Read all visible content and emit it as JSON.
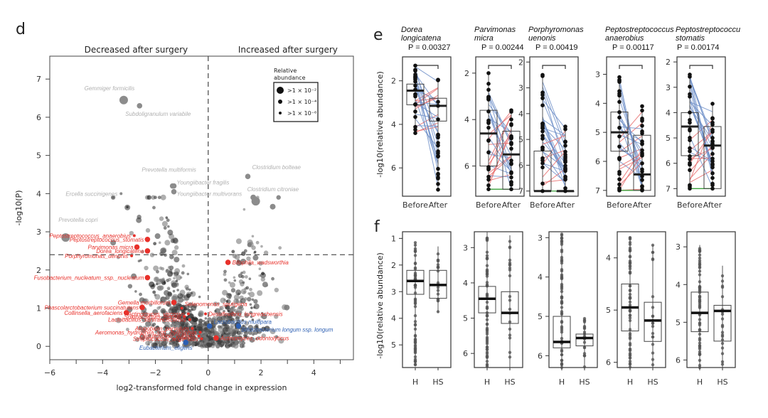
{
  "figure": {
    "panel_d_letter": "d",
    "panel_e_letter": "e",
    "panel_f_letter": "f"
  },
  "chart_data": [
    {
      "id": "d",
      "type": "scatter",
      "title": "",
      "header_left": "Decreased after surgery",
      "header_right": "Increased after surgery",
      "xlabel": "log2-transformed fold change in expression",
      "ylabel": "-log10(P)",
      "xlim": [
        -6,
        5.5
      ],
      "ylim": [
        -0.35,
        7.6
      ],
      "xticks": [
        -6,
        -5,
        -4,
        -3,
        -2,
        -1,
        0,
        1,
        2,
        3,
        4,
        5
      ],
      "xtick_labels": [
        "−6",
        "",
        "−4",
        "",
        "−2",
        "",
        "0",
        "",
        "2",
        "",
        "4",
        ""
      ],
      "yticks": [
        0,
        1,
        2,
        3,
        4,
        5,
        6,
        7
      ],
      "ytick_labels": [
        "0",
        "1",
        "2",
        "3",
        "4",
        "5",
        "6",
        "7"
      ],
      "vline_x": 0,
      "hline_y": 2.4,
      "legend": {
        "title_line1": "Relative",
        "title_line2": "abundance",
        "position": "top-right",
        "entries": [
          ">1 × 10⁻²",
          ">1 × 10⁻⁴",
          ">1 × 10⁻⁶"
        ]
      },
      "colors": {
        "grey_label": "#b0b0b0",
        "red": "#e8302a",
        "blue": "#2d5fb3",
        "point": "#555555"
      },
      "labeled_points": [
        {
          "name": "Gemmiger formicilis",
          "x": -3.2,
          "y": 6.45,
          "color": "grey",
          "size": 3
        },
        {
          "name": "Subdoligranulum variabile",
          "x": -2.6,
          "y": 6.3,
          "color": "grey",
          "size": 2
        },
        {
          "name": "Prevotella multiformis",
          "x": -1.35,
          "y": 4.2,
          "color": "grey",
          "size": 2
        },
        {
          "name": "Youngiibacter fragilis",
          "x": -1.3,
          "y": 4.2,
          "color": "grey",
          "size": 2
        },
        {
          "name": "Youngiibacter multivorans",
          "x": -1.3,
          "y": 4.05,
          "color": "grey",
          "size": 2
        },
        {
          "name": "Ercella succinigenes",
          "x": -3.3,
          "y": 4.0,
          "color": "grey",
          "size": 1
        },
        {
          "name": "Prevotella copri",
          "x": -5.4,
          "y": 2.85,
          "color": "grey",
          "size": 3
        },
        {
          "name": "Clostridium bolteae",
          "x": 1.5,
          "y": 4.45,
          "color": "grey",
          "size": 2
        },
        {
          "name": "Clostridium citroniae",
          "x": 1.8,
          "y": 3.8,
          "color": "grey",
          "size": 3
        },
        {
          "name": "Peptostreptococcus_anaerobius",
          "x": -2.8,
          "y": 2.9,
          "color": "red",
          "size": 1
        },
        {
          "name": "Peptostreptococcus_stomatis",
          "x": -2.3,
          "y": 2.8,
          "color": "red",
          "size": 2
        },
        {
          "name": "Parvimonas micra",
          "x": -2.7,
          "y": 2.6,
          "color": "red",
          "size": 2
        },
        {
          "name": "Dorea_longicatena",
          "x": -2.3,
          "y": 2.5,
          "color": "red",
          "size": 2
        },
        {
          "name": "Porphyromonas_uenonis",
          "x": -2.9,
          "y": 2.37,
          "color": "red",
          "size": 1
        },
        {
          "name": "Bilophila_wadsworthia",
          "x": 0.75,
          "y": 2.2,
          "color": "red",
          "size": 2
        },
        {
          "name": "Fusobacterium_nucleatum_ssp._nucleatum",
          "x": -2.3,
          "y": 1.8,
          "color": "red",
          "size": 2
        },
        {
          "name": "Gemella morbillorum",
          "x": -1.3,
          "y": 1.15,
          "color": "red",
          "size": 2
        },
        {
          "name": "Phascolarctobacterium succinatutens",
          "x": -2.5,
          "y": 1.02,
          "color": "red",
          "size": 2
        },
        {
          "name": "Selenomonas_sputigena",
          "x": -1.0,
          "y": 1.0,
          "color": "red",
          "size": 1
        },
        {
          "name": "Collinsella_aerofaciens",
          "x": -3.1,
          "y": 0.88,
          "color": "red",
          "size": 2
        },
        {
          "name": "Actinomyces_viscosus",
          "x": -0.75,
          "y": 0.85,
          "color": "red",
          "size": 1
        },
        {
          "name": "Desulfovibrio_longreachensis",
          "x": -0.1,
          "y": 0.85,
          "color": "red",
          "size": 1
        },
        {
          "name": "Solobacterium_moorei",
          "x": -0.9,
          "y": 0.78,
          "color": "red",
          "size": 1
        },
        {
          "name": "Lactobacillus_sanfranciscensis",
          "x": -0.7,
          "y": 0.7,
          "color": "red",
          "size": 1
        },
        {
          "name": "Lactobacillus multipara",
          "x": 0.05,
          "y": 0.53,
          "color": "blue",
          "size": 2
        },
        {
          "name": "Bifidobacterium longum ssp. longum",
          "x": 1.15,
          "y": 0.53,
          "color": "blue",
          "size": 2
        },
        {
          "name": "Atopobium_parvulum",
          "x": -0.6,
          "y": 0.47,
          "color": "red",
          "size": 1
        },
        {
          "name": "Aeromonas_hydrophila_ssp._hydrophila",
          "x": -0.3,
          "y": 0.37,
          "color": "red",
          "size": 1
        },
        {
          "name": "Desulfovibrio_vulgaris",
          "x": -0.35,
          "y": 0.27,
          "color": "red",
          "size": 1
        },
        {
          "name": "Actinomyces_odontolyticus",
          "x": 0.3,
          "y": 0.22,
          "color": "red",
          "size": 2
        },
        {
          "name": "Streptococcus_anginosus",
          "x": -0.25,
          "y": 0.2,
          "color": "red",
          "size": 1
        },
        {
          "name": "Eubacterium_eligens",
          "x": -0.85,
          "y": 0.1,
          "color": "blue",
          "size": 2
        }
      ]
    },
    {
      "id": "e",
      "type": "box-paired",
      "ylabel": "-log10(relative abundance)",
      "x_categories": [
        "Before",
        "After"
      ],
      "colors": {
        "decrease_line": "#6f8fc8",
        "increase_line": "#e86a6a",
        "tie_line": "#3aa03a",
        "point": "#111111"
      },
      "panels": [
        {
          "title_line1": "Dorea",
          "title_line2": "longicatena",
          "p_text": "P = 0.00327",
          "ylim": [
            0.9,
            7.3
          ],
          "yticks": [
            2,
            4,
            6
          ],
          "before": {
            "q1": 2.15,
            "median": 2.45,
            "q3": 3.1,
            "min": 1.3,
            "max": 4.4
          },
          "after": {
            "q1": 2.8,
            "median": 3.15,
            "q3": 3.85,
            "min": 1.95,
            "max": 7.0
          }
        },
        {
          "title_line1": "Parvimonas",
          "title_line2": "micra",
          "p_text": "P = 0.00244",
          "ylim": [
            1.3,
            7.3
          ],
          "yticks": [
            2,
            4,
            6
          ],
          "before": {
            "q1": 3.6,
            "median": 4.6,
            "q3": 6.0,
            "min": 2.0,
            "max": 7.0
          },
          "after": {
            "q1": 4.5,
            "median": 5.5,
            "q3": 7.0,
            "min": 3.6,
            "max": 7.0
          }
        },
        {
          "title_line1": "Porphyromonas",
          "title_line2": "uenonis",
          "p_text": "P = 0.00419",
          "ylim": [
            1.8,
            7.2
          ],
          "yticks": [
            2,
            3,
            4,
            5,
            6,
            7
          ],
          "before": {
            "q1": 5.45,
            "median": 7.0,
            "q3": 7.0,
            "min": 2.5,
            "max": 7.0
          },
          "after": {
            "q1": 7.0,
            "median": 7.0,
            "q3": 7.0,
            "min": 4.5,
            "max": 7.0
          }
        },
        {
          "title_line1": "Peptostreptococcus",
          "title_line2": "anaerobius",
          "p_text": "P = 0.00117",
          "ylim": [
            2.4,
            7.2
          ],
          "yticks": [
            3,
            4,
            5,
            6,
            7
          ],
          "before": {
            "q1": 4.3,
            "median": 5.0,
            "q3": 5.65,
            "min": 3.1,
            "max": 7.0
          },
          "after": {
            "q1": 5.1,
            "median": 6.45,
            "q3": 7.0,
            "min": 4.1,
            "max": 7.0
          }
        },
        {
          "title_line1": "Peptostreptococcu",
          "title_line2": "stomatis",
          "p_text": "P = 0.00174",
          "ylim": [
            1.8,
            7.3
          ],
          "yticks": [
            2,
            3,
            4,
            5,
            6,
            7
          ],
          "before": {
            "q1": 4.0,
            "median": 4.55,
            "q3": 5.7,
            "min": 2.5,
            "max": 7.0
          },
          "after": {
            "q1": 4.55,
            "median": 5.3,
            "q3": 7.0,
            "min": 3.65,
            "max": 7.0
          }
        }
      ]
    },
    {
      "id": "f",
      "type": "box",
      "ylabel": "-log10(relative abundance)",
      "x_categories": [
        "H",
        "HS"
      ],
      "panels": [
        {
          "ylim": [
            0.75,
            5.85
          ],
          "yticks": [
            1,
            2,
            3,
            4,
            5
          ],
          "H": {
            "q1": 2.2,
            "median": 2.6,
            "q3": 3.1,
            "min": 1.15,
            "max": 5.8
          },
          "HS": {
            "q1": 2.2,
            "median": 2.75,
            "q3": 3.25,
            "min": 1.3,
            "max": 3.8
          }
        },
        {
          "ylim": [
            2.55,
            6.4
          ],
          "yticks": [
            3,
            4,
            5,
            6
          ],
          "H": {
            "q1": 4.1,
            "median": 4.45,
            "q3": 4.85,
            "min": 2.55,
            "max": 6.4
          },
          "HS": {
            "q1": 4.25,
            "median": 4.85,
            "q3": 5.15,
            "min": 2.65,
            "max": 6.4
          }
        },
        {
          "ylim": [
            2.85,
            6.3
          ],
          "yticks": [
            3,
            4,
            5,
            6
          ],
          "H": {
            "q1": 5.0,
            "median": 5.65,
            "q3": 5.8,
            "min": 2.9,
            "max": 6.3
          },
          "HS": {
            "q1": 5.45,
            "median": 5.55,
            "q3": 5.75,
            "min": 5.05,
            "max": 6.3
          }
        },
        {
          "ylim": [
            3.5,
            6.1
          ],
          "yticks": [
            4,
            5,
            6
          ],
          "H": {
            "q1": 4.5,
            "median": 4.95,
            "q3": 5.4,
            "min": 3.6,
            "max": 6.1
          },
          "HS": {
            "q1": 4.85,
            "median": 5.2,
            "q3": 5.6,
            "min": 3.75,
            "max": 6.1
          }
        },
        {
          "ylim": [
            2.6,
            6.2
          ],
          "yticks": [
            3,
            4,
            5,
            6
          ],
          "H": {
            "q1": 4.2,
            "median": 4.75,
            "q3": 5.25,
            "min": 2.95,
            "max": 6.2
          },
          "HS": {
            "q1": 4.55,
            "median": 4.7,
            "q3": 5.5,
            "min": 3.5,
            "max": 6.2
          }
        }
      ]
    }
  ]
}
